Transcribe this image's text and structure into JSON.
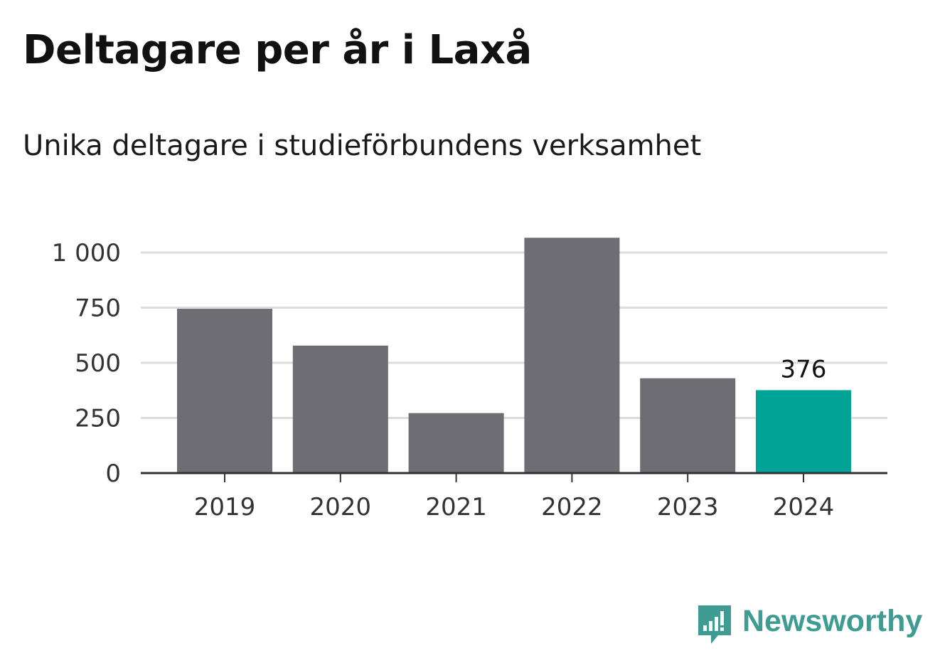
{
  "header": {
    "title": "Deltagare per år i Laxå",
    "subtitle": "Unika deltagare i studieförbundens verksamhet"
  },
  "chart_data": {
    "type": "bar",
    "title": "Deltagare per år i Laxå",
    "subtitle": "Unika deltagare i studieförbundens verksamhet",
    "categories": [
      "2019",
      "2020",
      "2021",
      "2022",
      "2023",
      "2024"
    ],
    "values": [
      745,
      578,
      272,
      1067,
      430,
      376
    ],
    "ylim": [
      0,
      1000
    ],
    "yticks": [
      0,
      250,
      500,
      750,
      1000
    ],
    "ytick_labels": [
      "0",
      "250",
      "500",
      "750",
      "1 000"
    ],
    "xlabel": "",
    "ylabel": "",
    "grid": true,
    "legend": "none",
    "highlight_index": 5,
    "data_labels": [
      {
        "index": 5,
        "text": "376"
      }
    ],
    "colors": {
      "bar": "#6e6d73",
      "highlight": "#00a497",
      "grid": "#dddddd",
      "axis": "#333333"
    }
  },
  "brand": {
    "name": "Newsworthy",
    "icon": "newsworthy-logo-icon",
    "color": "#3e9c93"
  }
}
